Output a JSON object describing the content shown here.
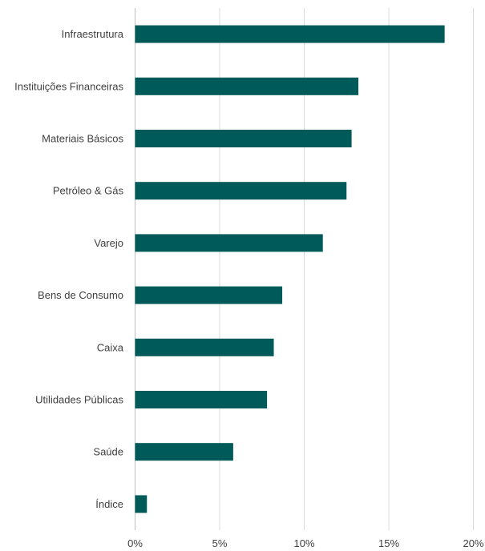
{
  "chart_data": {
    "type": "bar",
    "orientation": "horizontal",
    "title": "",
    "xlabel": "",
    "ylabel": "",
    "categories": [
      "Infraestrutura",
      "Instituições Financeiras",
      "Materiais Básicos",
      "Petróleo & Gás",
      "Varejo",
      "Bens de Consumo",
      "Caixa",
      "Utilidades Públicas",
      "Saúde",
      "Índice"
    ],
    "values": [
      18.3,
      13.2,
      12.8,
      12.5,
      11.1,
      8.7,
      8.2,
      7.8,
      5.8,
      0.7
    ],
    "xlim": [
      0,
      20
    ],
    "xticks": [
      0,
      5,
      10,
      15,
      20
    ],
    "xtick_labels": [
      "0%",
      "5%",
      "10%",
      "15%",
      "20%"
    ],
    "grid": "vertical",
    "legend": "none",
    "bar_color": "#005a5a"
  }
}
